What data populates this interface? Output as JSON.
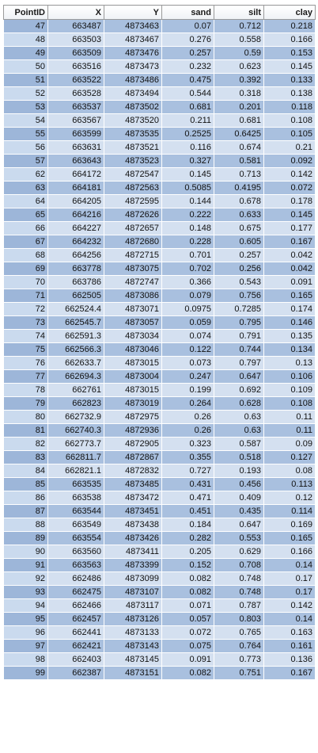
{
  "table": {
    "headers": [
      "PointID",
      "X",
      "Y",
      "sand",
      "silt",
      "clay"
    ],
    "rows": [
      [
        "47",
        "663487",
        "4873463",
        "0.07",
        "0.712",
        "0.218"
      ],
      [
        "48",
        "663503",
        "4873467",
        "0.276",
        "0.558",
        "0.166"
      ],
      [
        "49",
        "663509",
        "4873476",
        "0.257",
        "0.59",
        "0.153"
      ],
      [
        "50",
        "663516",
        "4873473",
        "0.232",
        "0.623",
        "0.145"
      ],
      [
        "51",
        "663522",
        "4873486",
        "0.475",
        "0.392",
        "0.133"
      ],
      [
        "52",
        "663528",
        "4873494",
        "0.544",
        "0.318",
        "0.138"
      ],
      [
        "53",
        "663537",
        "4873502",
        "0.681",
        "0.201",
        "0.118"
      ],
      [
        "54",
        "663567",
        "4873520",
        "0.211",
        "0.681",
        "0.108"
      ],
      [
        "55",
        "663599",
        "4873535",
        "0.2525",
        "0.6425",
        "0.105"
      ],
      [
        "56",
        "663631",
        "4873521",
        "0.116",
        "0.674",
        "0.21"
      ],
      [
        "57",
        "663643",
        "4873523",
        "0.327",
        "0.581",
        "0.092"
      ],
      [
        "62",
        "664172",
        "4872547",
        "0.145",
        "0.713",
        "0.142"
      ],
      [
        "63",
        "664181",
        "4872563",
        "0.5085",
        "0.4195",
        "0.072"
      ],
      [
        "64",
        "664205",
        "4872595",
        "0.144",
        "0.678",
        "0.178"
      ],
      [
        "65",
        "664216",
        "4872626",
        "0.222",
        "0.633",
        "0.145"
      ],
      [
        "66",
        "664227",
        "4872657",
        "0.148",
        "0.675",
        "0.177"
      ],
      [
        "67",
        "664232",
        "4872680",
        "0.228",
        "0.605",
        "0.167"
      ],
      [
        "68",
        "664256",
        "4872715",
        "0.701",
        "0.257",
        "0.042"
      ],
      [
        "69",
        "663778",
        "4873075",
        "0.702",
        "0.256",
        "0.042"
      ],
      [
        "70",
        "663786",
        "4872747",
        "0.366",
        "0.543",
        "0.091"
      ],
      [
        "71",
        "662505",
        "4873086",
        "0.079",
        "0.756",
        "0.165"
      ],
      [
        "72",
        "662524.4",
        "4873071",
        "0.0975",
        "0.7285",
        "0.174"
      ],
      [
        "73",
        "662545.7",
        "4873057",
        "0.059",
        "0.795",
        "0.146"
      ],
      [
        "74",
        "662591.3",
        "4873034",
        "0.074",
        "0.791",
        "0.135"
      ],
      [
        "75",
        "662566.3",
        "4873046",
        "0.122",
        "0.744",
        "0.134"
      ],
      [
        "76",
        "662633.7",
        "4873015",
        "0.073",
        "0.797",
        "0.13"
      ],
      [
        "77",
        "662694.3",
        "4873004",
        "0.247",
        "0.647",
        "0.106"
      ],
      [
        "78",
        "662761",
        "4873015",
        "0.199",
        "0.692",
        "0.109"
      ],
      [
        "79",
        "662823",
        "4873019",
        "0.264",
        "0.628",
        "0.108"
      ],
      [
        "80",
        "662732.9",
        "4872975",
        "0.26",
        "0.63",
        "0.11"
      ],
      [
        "81",
        "662740.3",
        "4872936",
        "0.26",
        "0.63",
        "0.11"
      ],
      [
        "82",
        "662773.7",
        "4872905",
        "0.323",
        "0.587",
        "0.09"
      ],
      [
        "83",
        "662811.7",
        "4872867",
        "0.355",
        "0.518",
        "0.127"
      ],
      [
        "84",
        "662821.1",
        "4872832",
        "0.727",
        "0.193",
        "0.08"
      ],
      [
        "85",
        "663535",
        "4873485",
        "0.431",
        "0.456",
        "0.113"
      ],
      [
        "86",
        "663538",
        "4873472",
        "0.471",
        "0.409",
        "0.12"
      ],
      [
        "87",
        "663544",
        "4873451",
        "0.451",
        "0.435",
        "0.114"
      ],
      [
        "88",
        "663549",
        "4873438",
        "0.184",
        "0.647",
        "0.169"
      ],
      [
        "89",
        "663554",
        "4873426",
        "0.282",
        "0.553",
        "0.165"
      ],
      [
        "90",
        "663560",
        "4873411",
        "0.205",
        "0.629",
        "0.166"
      ],
      [
        "91",
        "663563",
        "4873399",
        "0.152",
        "0.708",
        "0.14"
      ],
      [
        "92",
        "662486",
        "4873099",
        "0.082",
        "0.748",
        "0.17"
      ],
      [
        "93",
        "662475",
        "4873107",
        "0.082",
        "0.748",
        "0.17"
      ],
      [
        "94",
        "662466",
        "4873117",
        "0.071",
        "0.787",
        "0.142"
      ],
      [
        "95",
        "662457",
        "4873126",
        "0.057",
        "0.803",
        "0.14"
      ],
      [
        "96",
        "662441",
        "4873133",
        "0.072",
        "0.765",
        "0.163"
      ],
      [
        "97",
        "662421",
        "4873143",
        "0.075",
        "0.764",
        "0.161"
      ],
      [
        "98",
        "662403",
        "4873145",
        "0.091",
        "0.773",
        "0.136"
      ],
      [
        "99",
        "662387",
        "4873151",
        "0.082",
        "0.751",
        "0.167"
      ]
    ]
  }
}
